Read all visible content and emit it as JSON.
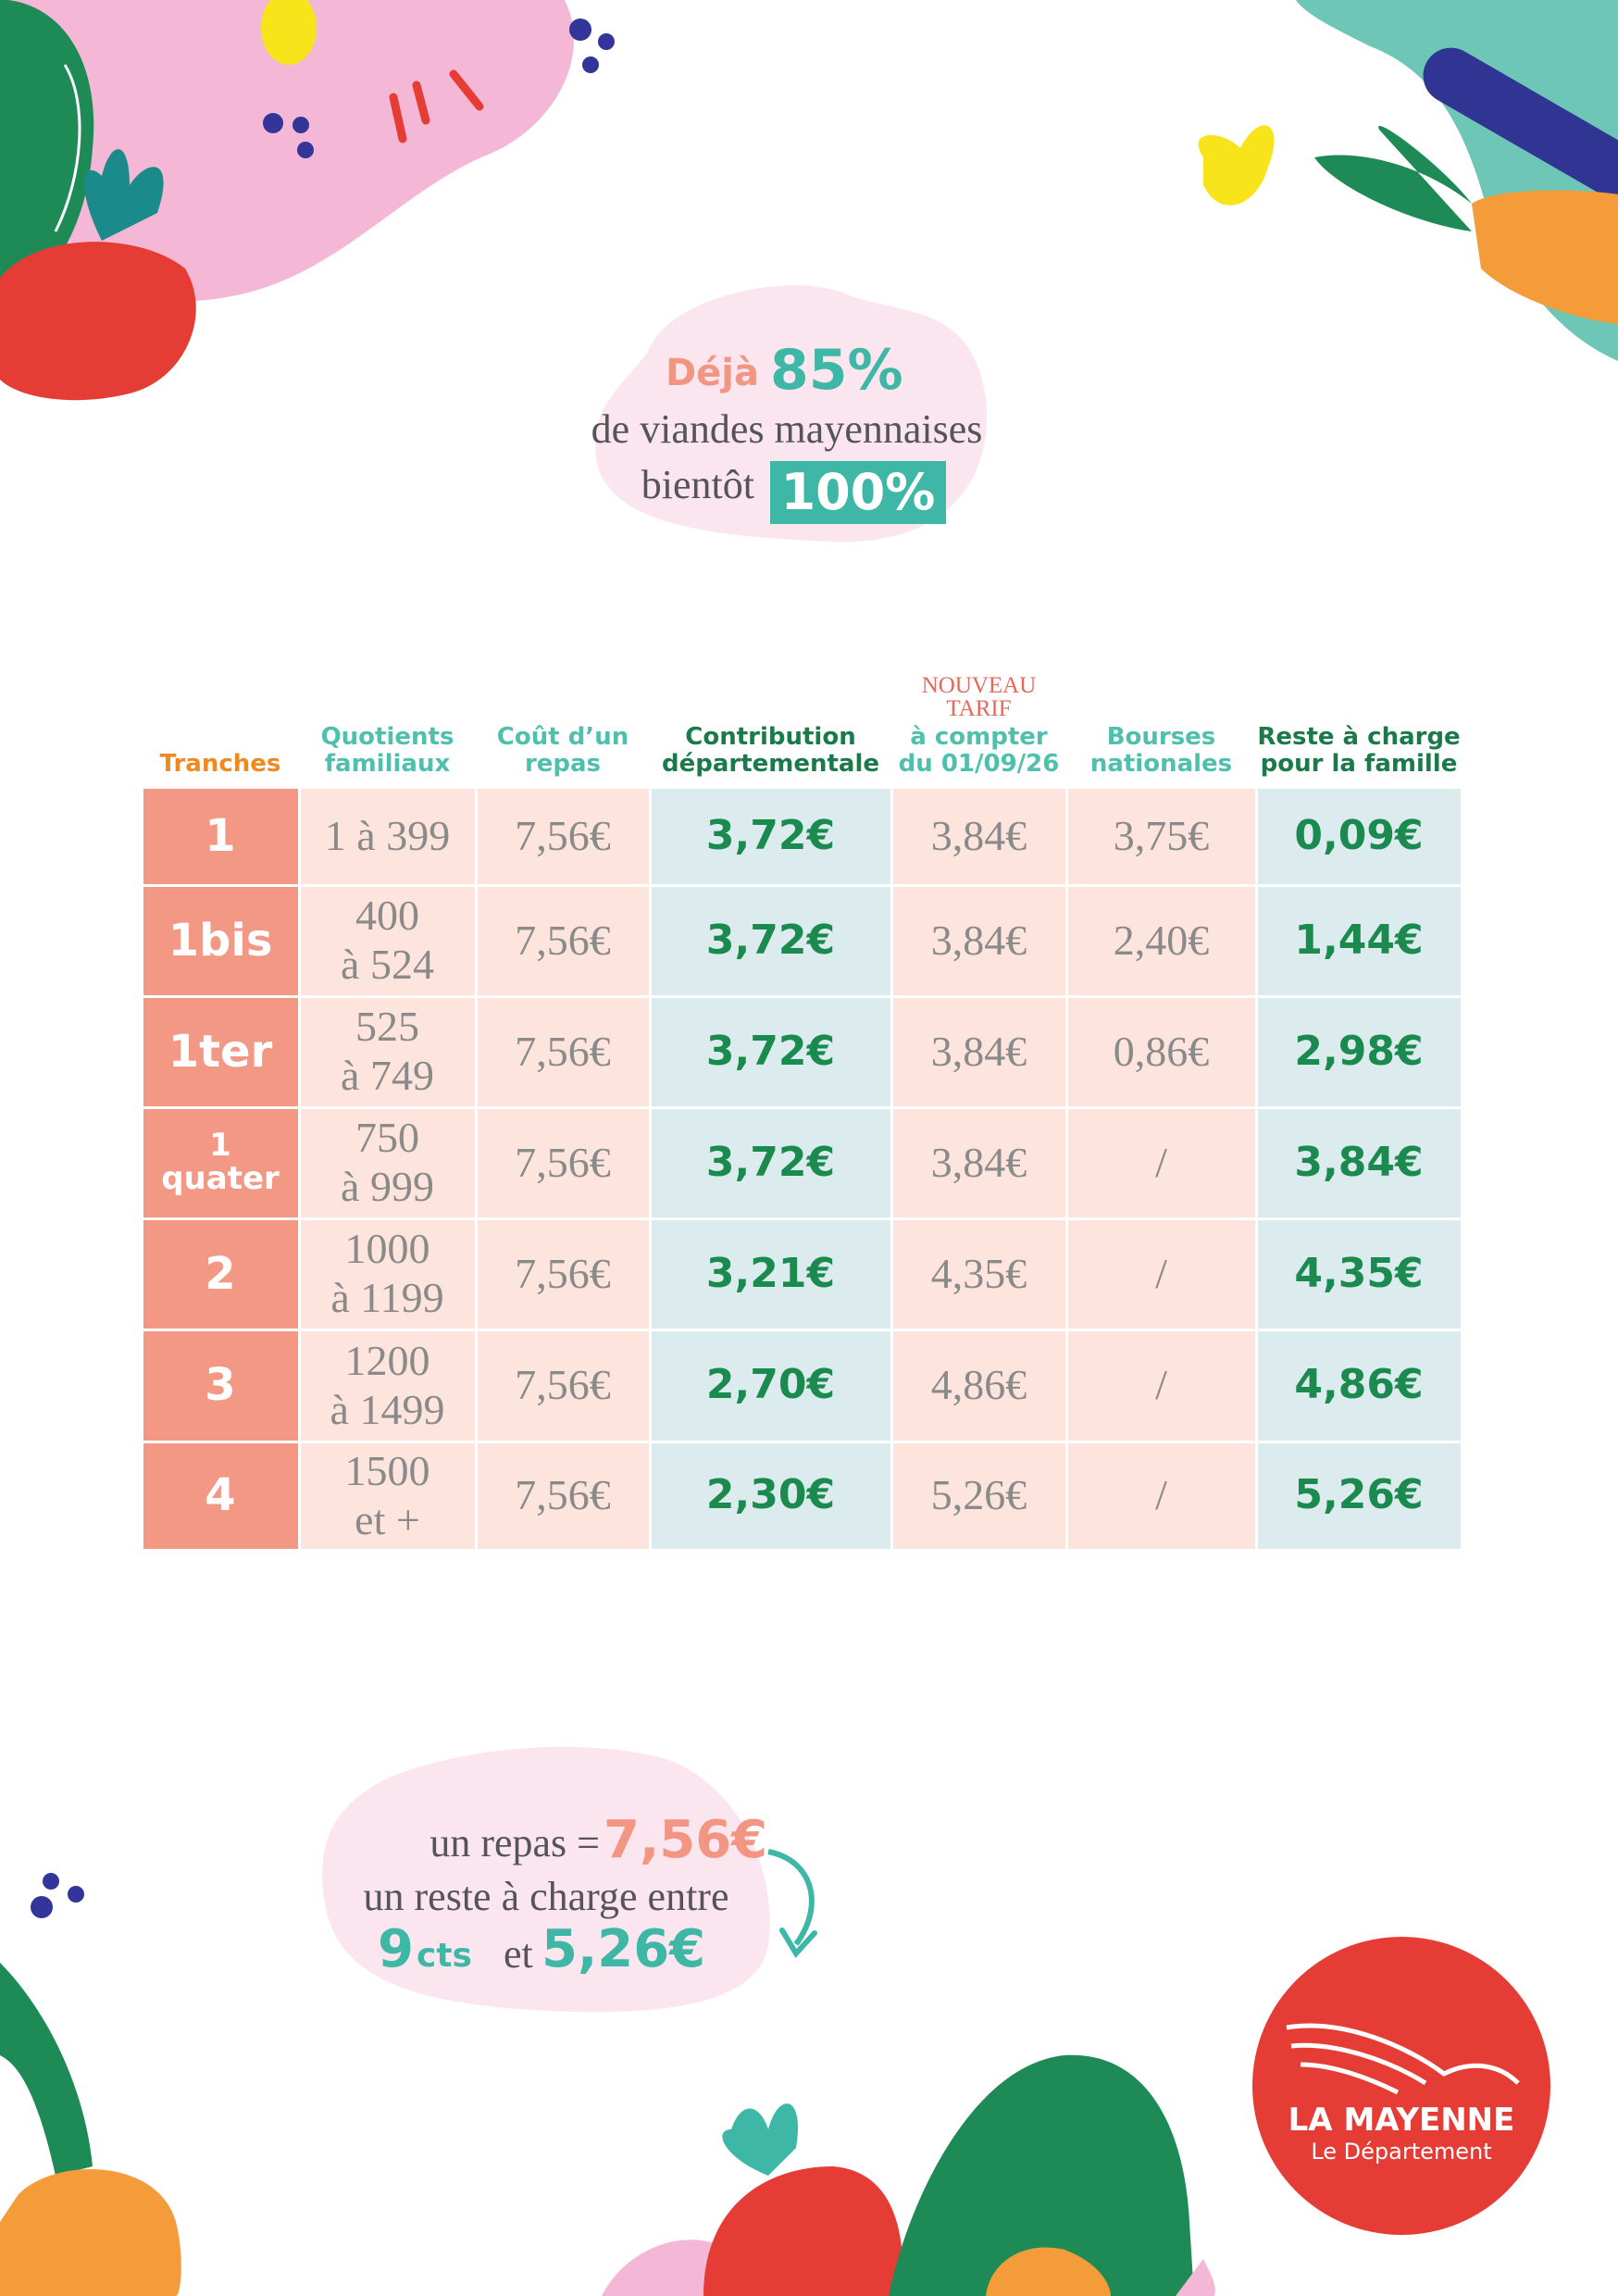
{
  "header": {
    "deja": "Déjà",
    "percent_now": "85%",
    "line": "de viandes mayennaises",
    "soon": "bientôt",
    "percent_soon": "100%"
  },
  "table": {
    "columns": [
      "Tranches",
      "Quotients\nfamiliaux",
      "Coût d’un\nrepas",
      "Contribution\ndépartementale",
      "à compter\ndu 01/09/26",
      "Bourses\nnationales",
      "Reste à charge\npour la famille"
    ],
    "new_rate_note": "NOUVEAU\nTARIF",
    "rows": [
      [
        "1",
        "1 à 399",
        "7,56€",
        "3,72€",
        "3,84€",
        "3,75€",
        "0,09€"
      ],
      [
        "1bis",
        "400\nà 524",
        "7,56€",
        "3,72€",
        "3,84€",
        "2,40€",
        "1,44€"
      ],
      [
        "1ter",
        "525\nà 749",
        "7,56€",
        "3,72€",
        "3,84€",
        "0,86€",
        "2,98€"
      ],
      [
        "1\nquater",
        "750\nà 999",
        "7,56€",
        "3,72€",
        "3,84€",
        "/",
        "3,84€"
      ],
      [
        "2",
        "1000\nà 1199",
        "7,56€",
        "3,21€",
        "4,35€",
        "/",
        "4,35€"
      ],
      [
        "3",
        "1200\nà 1499",
        "7,56€",
        "2,70€",
        "4,86€",
        "/",
        "4,86€"
      ],
      [
        "4",
        "1500\net +",
        "7,56€",
        "2,30€",
        "5,26€",
        "/",
        "5,26€"
      ]
    ]
  },
  "footer": {
    "meal": "un repas =",
    "meal_price": "7,56€",
    "range_text": "un reste à charge entre",
    "min_value": "9",
    "min_unit": "cts",
    "and": "et",
    "max_value": "5,26€"
  },
  "logo": {
    "name": "LA MAYENNE",
    "subtitle": "Le Département"
  }
}
